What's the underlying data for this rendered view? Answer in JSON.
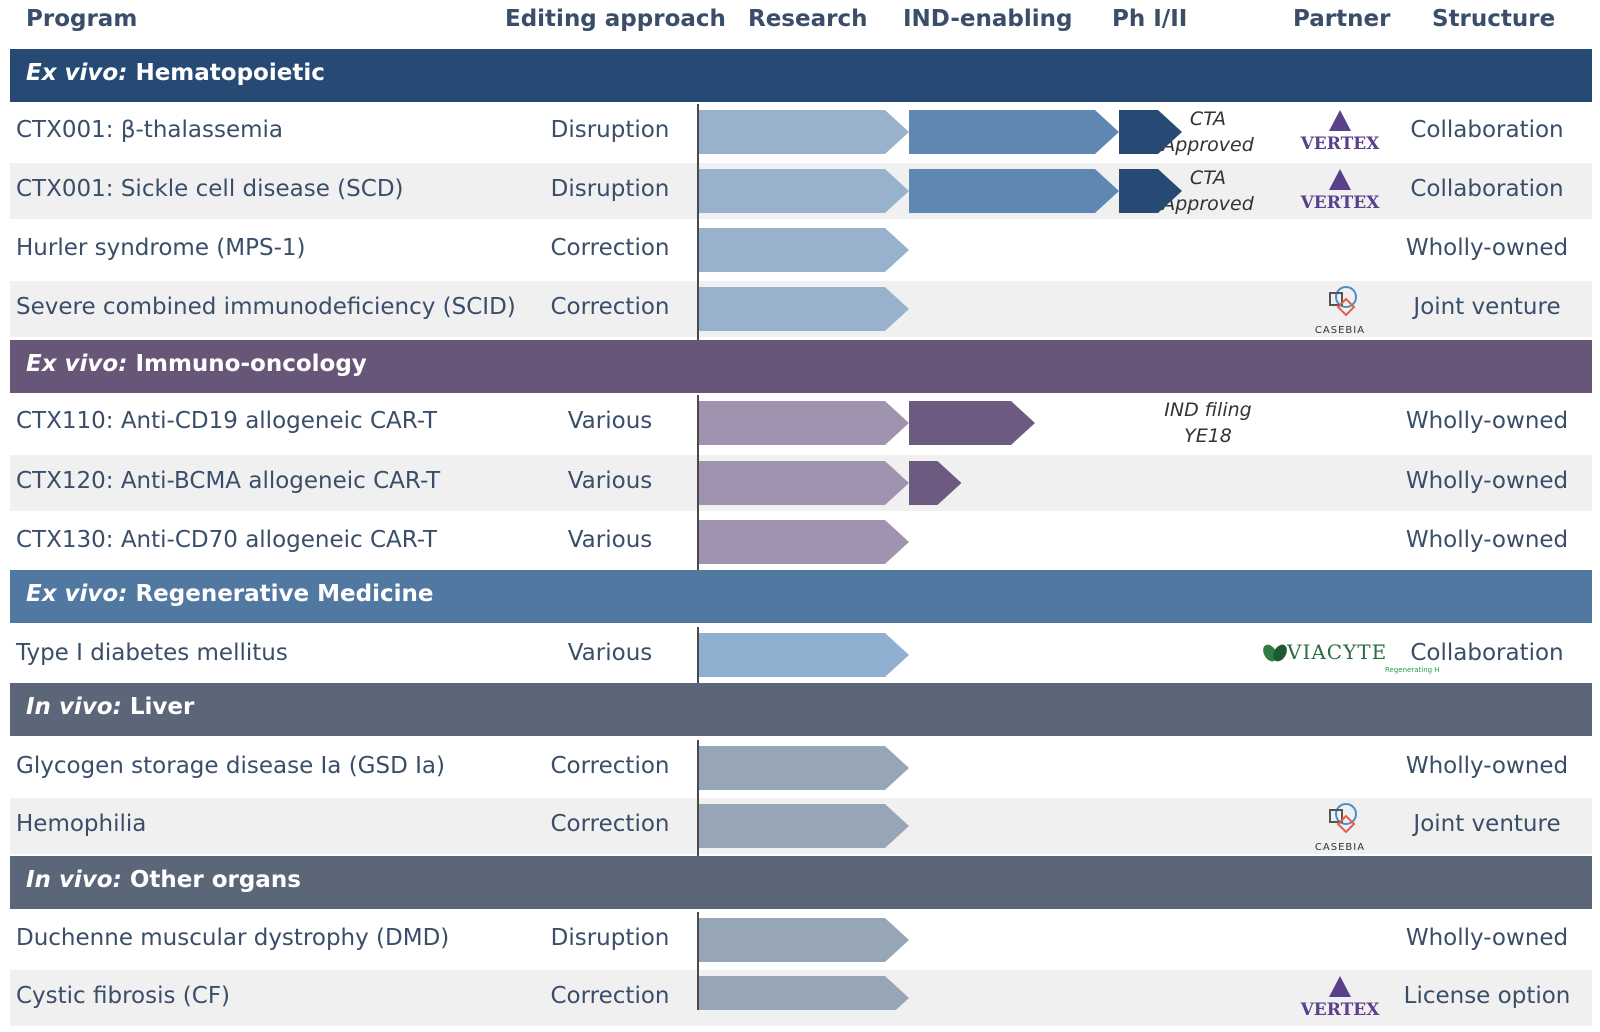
{
  "headers": {
    "program": "Program",
    "editing_approach": "Editing approach",
    "research": "Research",
    "ind_enabling": "IND-enabling",
    "ph": "Ph I/II",
    "partner": "Partner",
    "structure": "Structure"
  },
  "colors": {
    "hematopoietic": "#264a73",
    "immuno_oncology": "#675678",
    "regenerative": "#5178a1",
    "liver": "#5b6779",
    "other_organs": "#5b6779",
    "text": "#3a4e6a"
  },
  "chart_data": {
    "type": "table",
    "stages": [
      "Research",
      "IND-enabling",
      "Ph I/II"
    ],
    "sections": [
      {
        "id": "hematopoietic",
        "prefix": "Ex vivo:",
        "title": "Hematopoietic",
        "rows": [
          {
            "program": "CTX001: β-thalassemia",
            "approach": "Disruption",
            "progress": 2.3,
            "note": [
              "CTA",
              "Approved"
            ],
            "partner": "VERTEX",
            "structure": "Collaboration"
          },
          {
            "program": "CTX001: Sickle cell disease (SCD)",
            "approach": "Disruption",
            "progress": 2.3,
            "note": [
              "CTA",
              "Approved"
            ],
            "partner": "VERTEX",
            "structure": "Collaboration"
          },
          {
            "program": "Hurler syndrome (MPS-1)",
            "approach": "Correction",
            "progress": 1.0,
            "note": [],
            "partner": "",
            "structure": "Wholly-owned"
          },
          {
            "program": "Severe combined immunodeficiency (SCID)",
            "approach": "Correction",
            "progress": 1.0,
            "note": [],
            "partner": "CASEBIA",
            "structure": "Joint venture"
          }
        ]
      },
      {
        "id": "immuno_oncology",
        "prefix": "Ex vivo:",
        "title": "Immuno-oncology",
        "rows": [
          {
            "program": "CTX110: Anti-CD19 allogeneic CAR-T",
            "approach": "Various",
            "progress": 1.6,
            "note": [
              "IND filing",
              "YE18"
            ],
            "partner": "",
            "structure": "Wholly-owned"
          },
          {
            "program": "CTX120: Anti-BCMA allogeneic CAR-T",
            "approach": "Various",
            "progress": 1.25,
            "note": [],
            "partner": "",
            "structure": "Wholly-owned"
          },
          {
            "program": "CTX130: Anti-CD70 allogeneic CAR-T",
            "approach": "Various",
            "progress": 1.0,
            "note": [],
            "partner": "",
            "structure": "Wholly-owned"
          }
        ]
      },
      {
        "id": "regenerative",
        "prefix": "Ex vivo:",
        "title": "Regenerative Medicine",
        "rows": [
          {
            "program": "Type I diabetes mellitus",
            "approach": "Various",
            "progress": 1.0,
            "note": [],
            "partner": "VIACYTE",
            "partner_sub": "Regenerating Health",
            "structure": "Collaboration"
          }
        ]
      },
      {
        "id": "liver",
        "prefix": "In vivo:",
        "title": "Liver",
        "rows": [
          {
            "program": "Glycogen storage disease Ia (GSD Ia)",
            "approach": "Correction",
            "progress": 1.0,
            "note": [],
            "partner": "",
            "structure": "Wholly-owned"
          },
          {
            "program": "Hemophilia",
            "approach": "Correction",
            "progress": 1.0,
            "note": [],
            "partner": "CASEBIA",
            "structure": "Joint venture"
          }
        ]
      },
      {
        "id": "other_organs",
        "prefix": "In vivo:",
        "title": "Other organs",
        "rows": [
          {
            "program": "Duchenne muscular dystrophy (DMD)",
            "approach": "Disruption",
            "progress": 1.0,
            "note": [],
            "partner": "",
            "structure": "Wholly-owned"
          },
          {
            "program": "Cystic fibrosis (CF)",
            "approach": "Correction",
            "progress": 1.0,
            "note": [],
            "partner": "VERTEX",
            "structure": "License option"
          }
        ]
      }
    ]
  }
}
